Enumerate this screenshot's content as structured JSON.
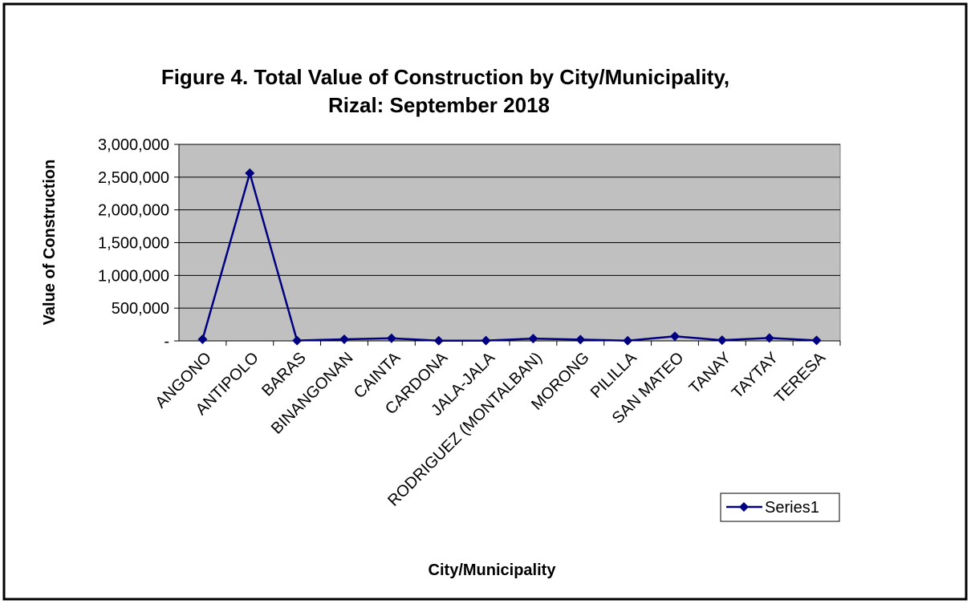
{
  "chart_data": {
    "type": "line",
    "title": [
      "Figure 4. Total Value of Construction by City/Municipality,",
      "Rizal:  September 2018"
    ],
    "x_label": "City/Municipality",
    "y_label": "Value of Construction",
    "categories": [
      "ANGONO",
      "ANTIPOLO",
      "BARAS",
      "BINANGONAN",
      "CAINTA",
      "CARDONA",
      "JALA-JALA",
      "RODRIGUEZ (MONTALBAN)",
      "MORONG",
      "PILILLA",
      "SAN MATEO",
      "TANAY",
      "TAYTAY",
      "TERESA"
    ],
    "series": [
      {
        "name": "Series1",
        "color": "#000080",
        "values": [
          25000,
          2560000,
          5000,
          25000,
          40000,
          3000,
          5000,
          35000,
          20000,
          3000,
          70000,
          10000,
          45000,
          8000
        ]
      }
    ],
    "ylim": [
      0,
      3000000
    ],
    "yticks": [
      {
        "value": 0,
        "label": "-"
      },
      {
        "value": 500000,
        "label": "500,000"
      },
      {
        "value": 1000000,
        "label": "1,000,000"
      },
      {
        "value": 1500000,
        "label": "1,500,000"
      },
      {
        "value": 2000000,
        "label": "2,000,000"
      },
      {
        "value": 2500000,
        "label": "2,500,000"
      },
      {
        "value": 3000000,
        "label": "3,000,000"
      }
    ],
    "grid": true,
    "legend": "right"
  }
}
